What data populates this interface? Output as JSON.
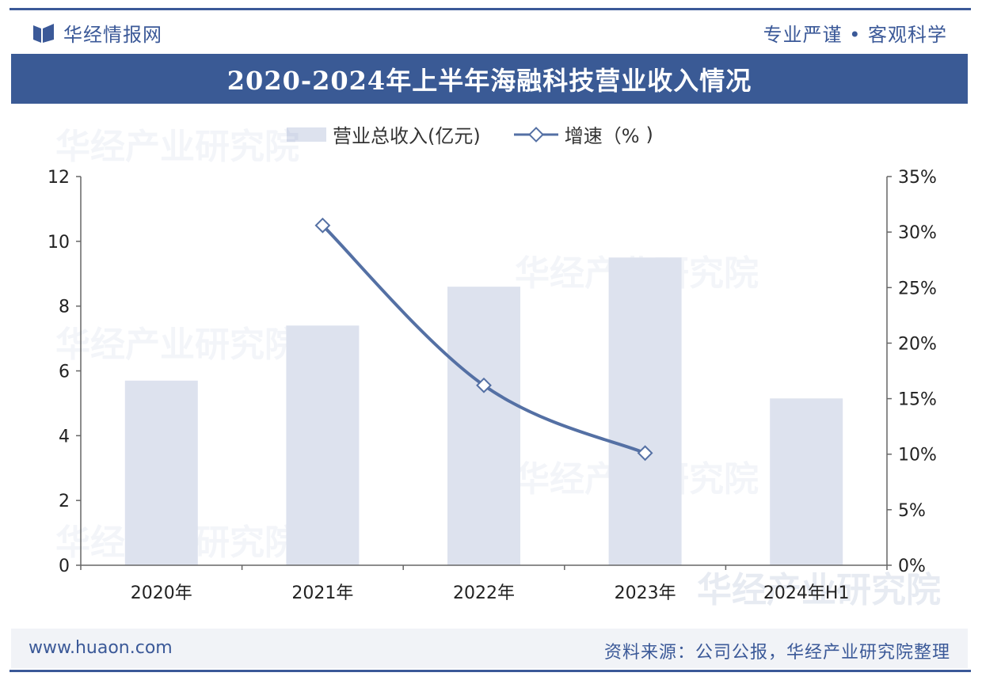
{
  "header": {
    "brand": "华经情报网",
    "slogan": "专业严谨 • 客观科学",
    "title": "2020-2024年上半年海融科技营业收入情况"
  },
  "footer": {
    "url": "www.huaon.com",
    "source": "资料来源：公司公报，华经产业研究院整理"
  },
  "colors": {
    "brand": "#3b5998",
    "bar": "#dde2ee",
    "line": "#5470a4",
    "axis": "#666666"
  },
  "chart_data": {
    "type": "bar",
    "title": "2020-2024年上半年海融科技营业收入情况",
    "categories": [
      "2020年",
      "2021年",
      "2022年",
      "2023年",
      "2024年H1"
    ],
    "series": [
      {
        "name": "营业总收入(亿元)",
        "type": "bar",
        "axis": "left",
        "values": [
          5.7,
          7.4,
          8.6,
          9.5,
          5.15
        ]
      },
      {
        "name": "增速（%",
        "type": "line",
        "axis": "right",
        "values": [
          null,
          30.6,
          16.2,
          10.1,
          null
        ]
      }
    ],
    "y_left": {
      "min": 0,
      "max": 12,
      "ticks": [
        "0",
        "2",
        "4",
        "6",
        "8",
        "10",
        "12"
      ],
      "tick_values": [
        0,
        2,
        4,
        6,
        8,
        10,
        12
      ]
    },
    "y_right": {
      "min": 0,
      "max": 35,
      "ticks": [
        "0%",
        "5%",
        "10%",
        "15%",
        "20%",
        "25%",
        "30%",
        "35%"
      ],
      "tick_values": [
        0,
        5,
        10,
        15,
        20,
        25,
        30,
        35
      ]
    },
    "legend": [
      "营业总收入(亿元)",
      "增速（%"
    ],
    "legend_position": "top"
  }
}
